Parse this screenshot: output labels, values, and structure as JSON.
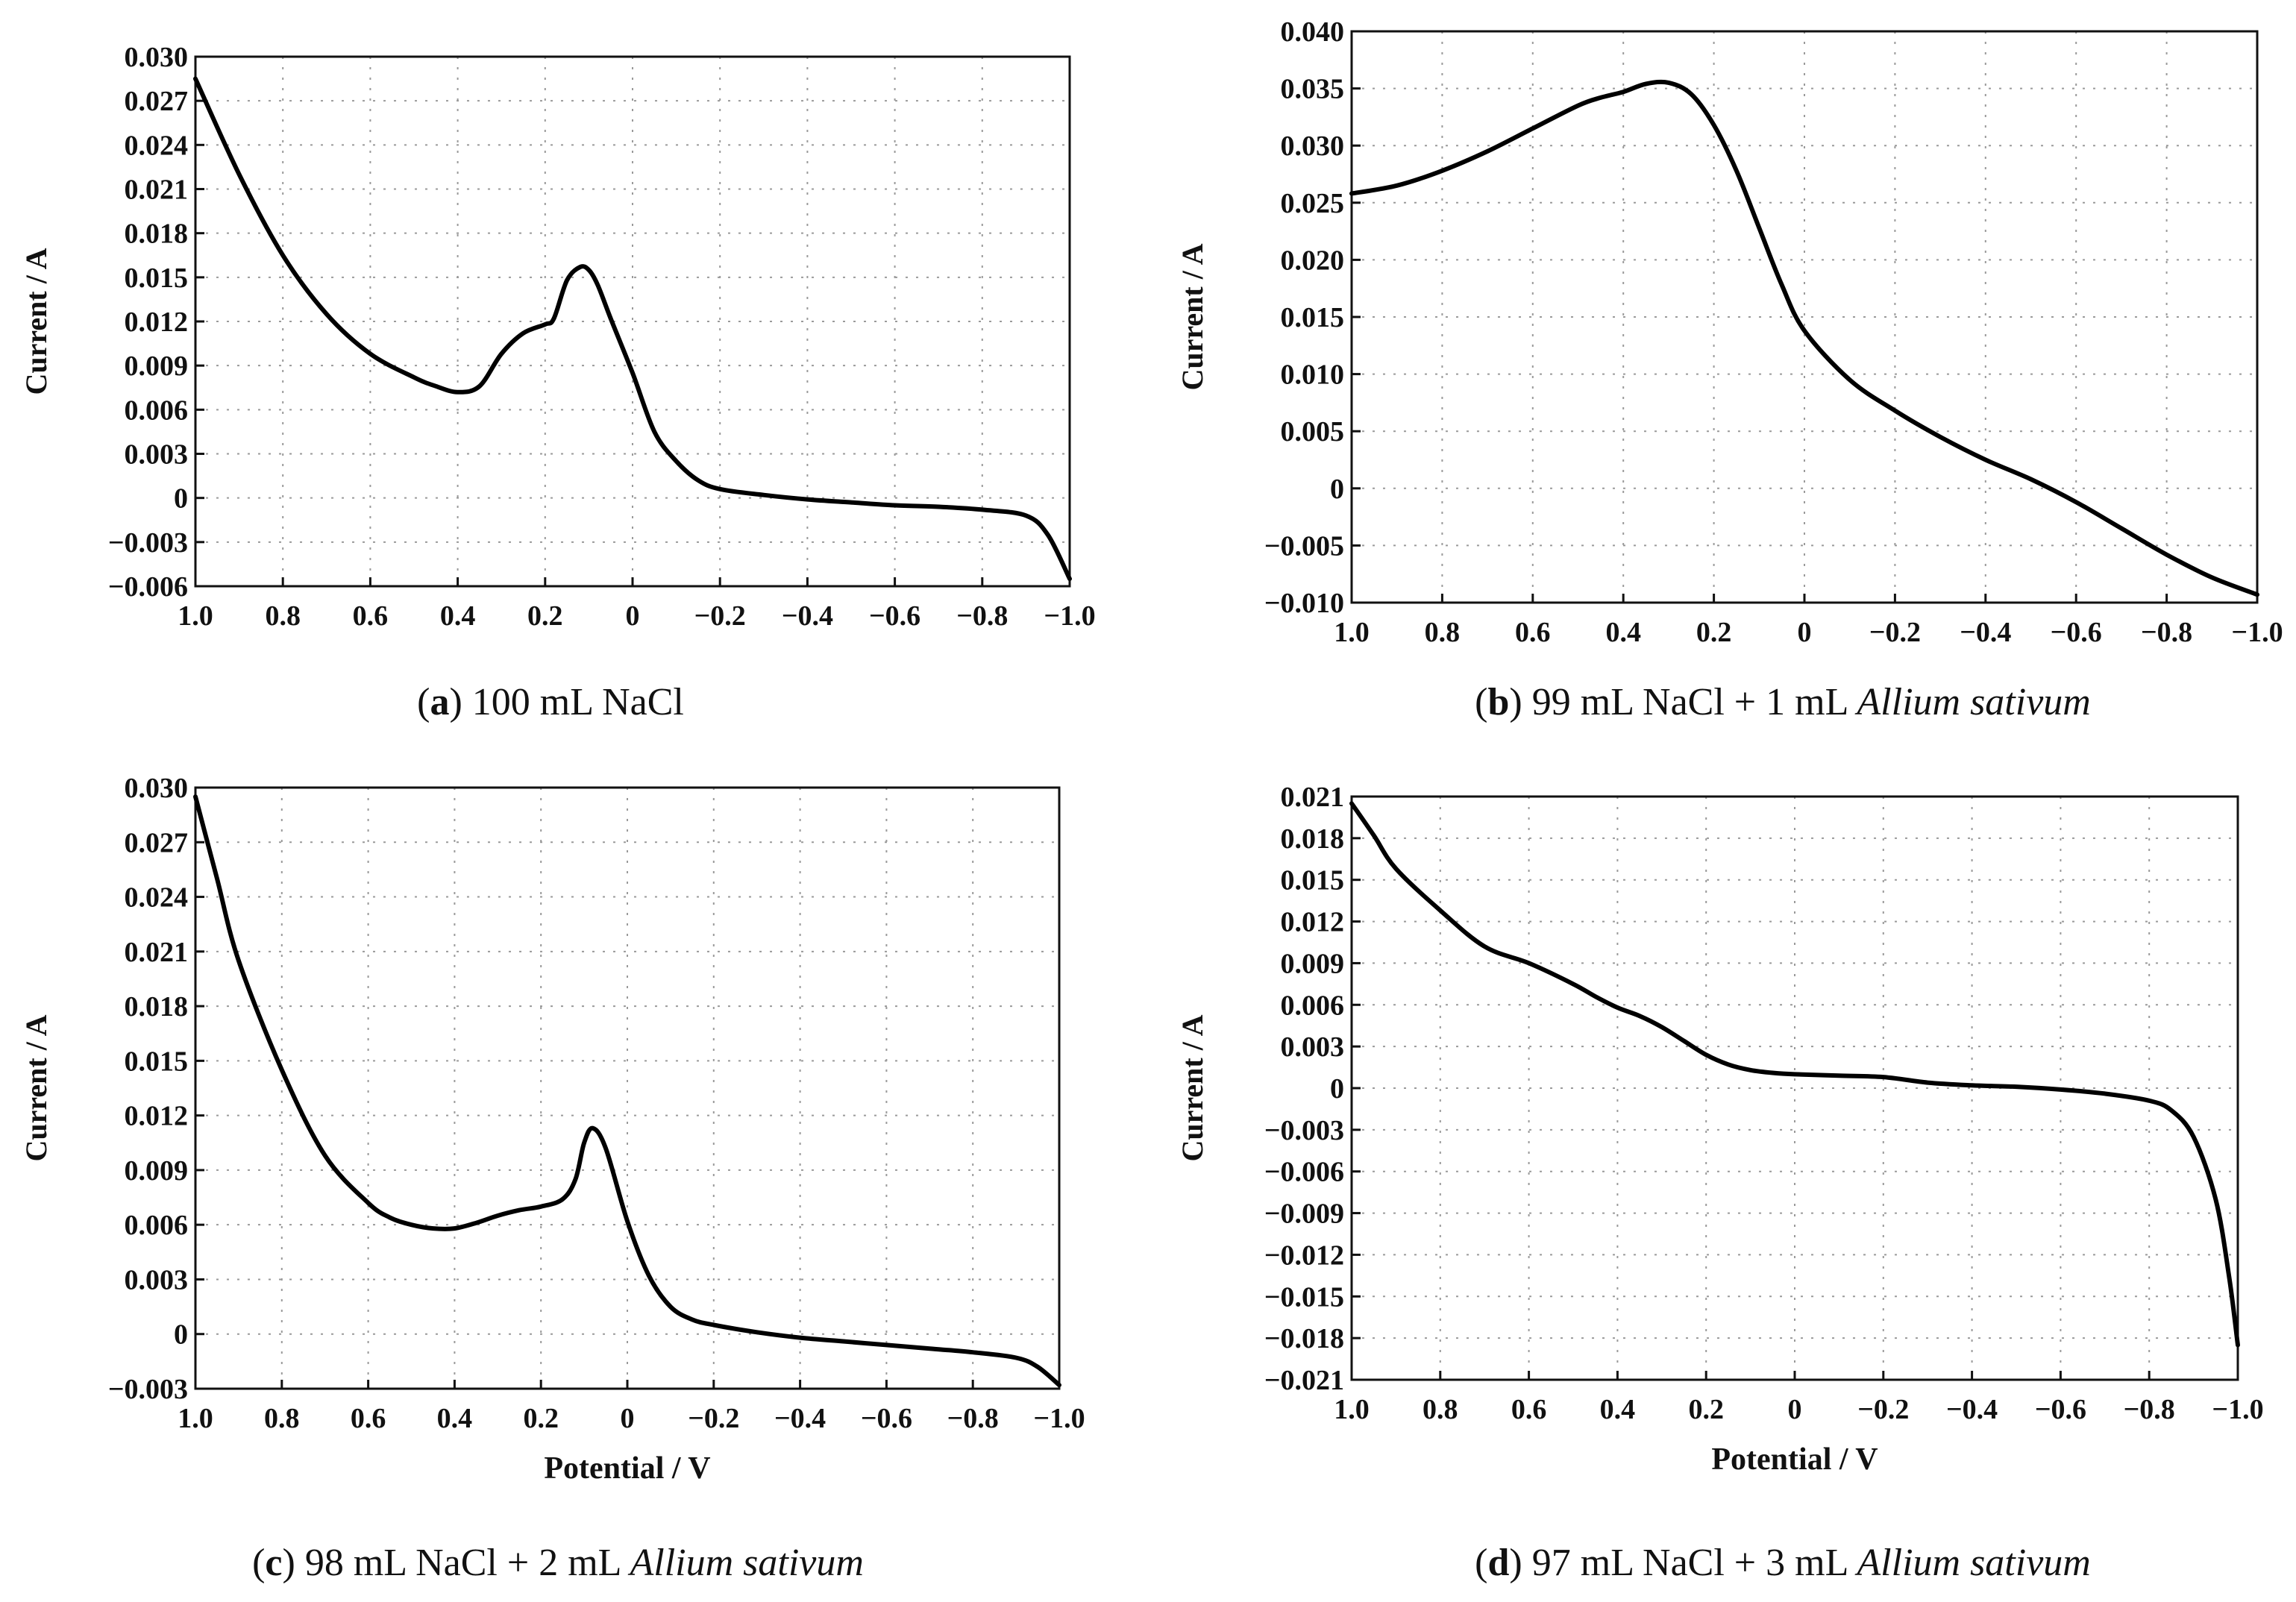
{
  "chart_data": [
    {
      "id": "a",
      "type": "line",
      "caption": {
        "letter": "a",
        "text": "100 mL NaCl",
        "italic": ""
      },
      "xlabel": "",
      "ylabel": "Current / A",
      "xlim": [
        1.0,
        -1.0
      ],
      "ylim": [
        -0.006,
        0.03
      ],
      "xticks": [
        "1.0",
        "0.8",
        "0.6",
        "0.4",
        "0.2",
        "0",
        "−0.2",
        "−0.4",
        "−0.6",
        "−0.8",
        "−1.0"
      ],
      "yticks": [
        "0.030",
        "0.027",
        "0.024",
        "0.021",
        "0.018",
        "0.015",
        "0.012",
        "0.009",
        "0.006",
        "0.003",
        "0",
        "−0.003",
        "−0.006"
      ],
      "series": [
        {
          "name": "current",
          "x": [
            1.0,
            0.9,
            0.8,
            0.7,
            0.6,
            0.5,
            0.45,
            0.4,
            0.35,
            0.3,
            0.25,
            0.2,
            0.18,
            0.15,
            0.12,
            0.1,
            0.08,
            0.05,
            0.0,
            -0.05,
            -0.1,
            -0.15,
            -0.2,
            -0.3,
            -0.4,
            -0.5,
            -0.6,
            -0.7,
            -0.8,
            -0.9,
            -0.95,
            -1.0
          ],
          "y": [
            0.0285,
            0.022,
            0.0165,
            0.0125,
            0.0098,
            0.0082,
            0.0076,
            0.0072,
            0.0076,
            0.0098,
            0.0112,
            0.0118,
            0.0122,
            0.0148,
            0.0157,
            0.0155,
            0.0145,
            0.0122,
            0.0085,
            0.0045,
            0.0025,
            0.0012,
            0.0006,
            0.0002,
            -0.0001,
            -0.0003,
            -0.0005,
            -0.0006,
            -0.0008,
            -0.0012,
            -0.0025,
            -0.0055
          ]
        }
      ]
    },
    {
      "id": "b",
      "type": "line",
      "caption": {
        "letter": "b",
        "text": "99 mL NaCl + 1 mL",
        "italic": "Allium sativum"
      },
      "xlabel": "",
      "ylabel": "Current / A",
      "xlim": [
        1.0,
        -1.0
      ],
      "ylim": [
        -0.01,
        0.04
      ],
      "xticks": [
        "1.0",
        "0.8",
        "0.6",
        "0.4",
        "0.2",
        "0",
        "−0.2",
        "−0.4",
        "−0.6",
        "−0.8",
        "−1.0"
      ],
      "yticks": [
        "0.040",
        "0.035",
        "0.030",
        "0.025",
        "0.020",
        "0.015",
        "0.010",
        "0.005",
        "0",
        "−0.005",
        "−0.010"
      ],
      "series": [
        {
          "name": "current",
          "x": [
            1.0,
            0.9,
            0.8,
            0.7,
            0.6,
            0.5,
            0.45,
            0.4,
            0.35,
            0.3,
            0.25,
            0.2,
            0.15,
            0.1,
            0.05,
            0.0,
            -0.1,
            -0.2,
            -0.3,
            -0.4,
            -0.5,
            -0.6,
            -0.7,
            -0.8,
            -0.9,
            -1.0
          ],
          "y": [
            0.0258,
            0.0265,
            0.0278,
            0.0295,
            0.0315,
            0.0335,
            0.0342,
            0.0347,
            0.0354,
            0.0355,
            0.0345,
            0.0318,
            0.0278,
            0.0228,
            0.0178,
            0.0138,
            0.0095,
            0.0068,
            0.0045,
            0.0025,
            0.0008,
            -0.0012,
            -0.0035,
            -0.0058,
            -0.0078,
            -0.0093
          ]
        }
      ]
    },
    {
      "id": "c",
      "type": "line",
      "caption": {
        "letter": "c",
        "text": "98 mL NaCl + 2 mL",
        "italic": "Allium sativum"
      },
      "xlabel": "Potential / V",
      "ylabel": "Current / A",
      "xlim": [
        1.0,
        -1.0
      ],
      "ylim": [
        -0.003,
        0.03
      ],
      "xticks": [
        "1.0",
        "0.8",
        "0.6",
        "0.4",
        "0.2",
        "0",
        "−0.2",
        "−0.4",
        "−0.6",
        "−0.8",
        "−1.0"
      ],
      "yticks": [
        "0.030",
        "0.027",
        "0.024",
        "0.021",
        "0.018",
        "0.015",
        "0.012",
        "0.009",
        "0.006",
        "0.003",
        "0",
        "−0.003"
      ],
      "series": [
        {
          "name": "current",
          "x": [
            1.0,
            0.95,
            0.9,
            0.8,
            0.7,
            0.6,
            0.55,
            0.5,
            0.45,
            0.4,
            0.35,
            0.3,
            0.25,
            0.2,
            0.15,
            0.12,
            0.1,
            0.08,
            0.05,
            0.0,
            -0.05,
            -0.1,
            -0.15,
            -0.2,
            -0.3,
            -0.4,
            -0.5,
            -0.6,
            -0.7,
            -0.8,
            -0.9,
            -0.95,
            -1.0
          ],
          "y": [
            0.0295,
            0.025,
            0.0205,
            0.0145,
            0.0098,
            0.0072,
            0.0064,
            0.006,
            0.0058,
            0.0058,
            0.0061,
            0.0065,
            0.0068,
            0.007,
            0.0074,
            0.0085,
            0.0105,
            0.0113,
            0.0102,
            0.0062,
            0.0032,
            0.0015,
            0.0008,
            0.0005,
            0.0001,
            -0.0002,
            -0.0004,
            -0.0006,
            -0.0008,
            -0.001,
            -0.0013,
            -0.0018,
            -0.0028
          ]
        }
      ]
    },
    {
      "id": "d",
      "type": "line",
      "caption": {
        "letter": "d",
        "text": "97 mL NaCl + 3 mL",
        "italic": "Allium sativum"
      },
      "xlabel": "Potential / V",
      "ylabel": "Current / A",
      "xlim": [
        1.0,
        -1.0
      ],
      "ylim": [
        -0.021,
        0.021
      ],
      "xticks": [
        "1.0",
        "0.8",
        "0.6",
        "0.4",
        "0.2",
        "0",
        "−0.2",
        "−0.4",
        "−0.6",
        "−0.8",
        "−1.0"
      ],
      "yticks": [
        "0.021",
        "0.018",
        "0.015",
        "0.012",
        "0.009",
        "0.006",
        "0.003",
        "0",
        "−0.003",
        "−0.006",
        "−0.009",
        "−0.012",
        "−0.015",
        "−0.018",
        "−0.021"
      ],
      "series": [
        {
          "name": "current",
          "x": [
            1.0,
            0.95,
            0.9,
            0.8,
            0.7,
            0.6,
            0.5,
            0.45,
            0.4,
            0.35,
            0.3,
            0.25,
            0.2,
            0.15,
            0.1,
            0.05,
            0.0,
            -0.1,
            -0.2,
            -0.3,
            -0.4,
            -0.5,
            -0.6,
            -0.7,
            -0.8,
            -0.85,
            -0.9,
            -0.95,
            -0.98,
            -1.0
          ],
          "y": [
            0.0205,
            0.0182,
            0.0158,
            0.0128,
            0.0102,
            0.009,
            0.0075,
            0.0066,
            0.0058,
            0.0052,
            0.0044,
            0.0034,
            0.0024,
            0.0017,
            0.0013,
            0.0011,
            0.001,
            0.0009,
            0.0008,
            0.0004,
            0.0002,
            0.0001,
            -0.0001,
            -0.0004,
            -0.0009,
            -0.0016,
            -0.0035,
            -0.008,
            -0.0135,
            -0.0185
          ]
        }
      ]
    }
  ]
}
